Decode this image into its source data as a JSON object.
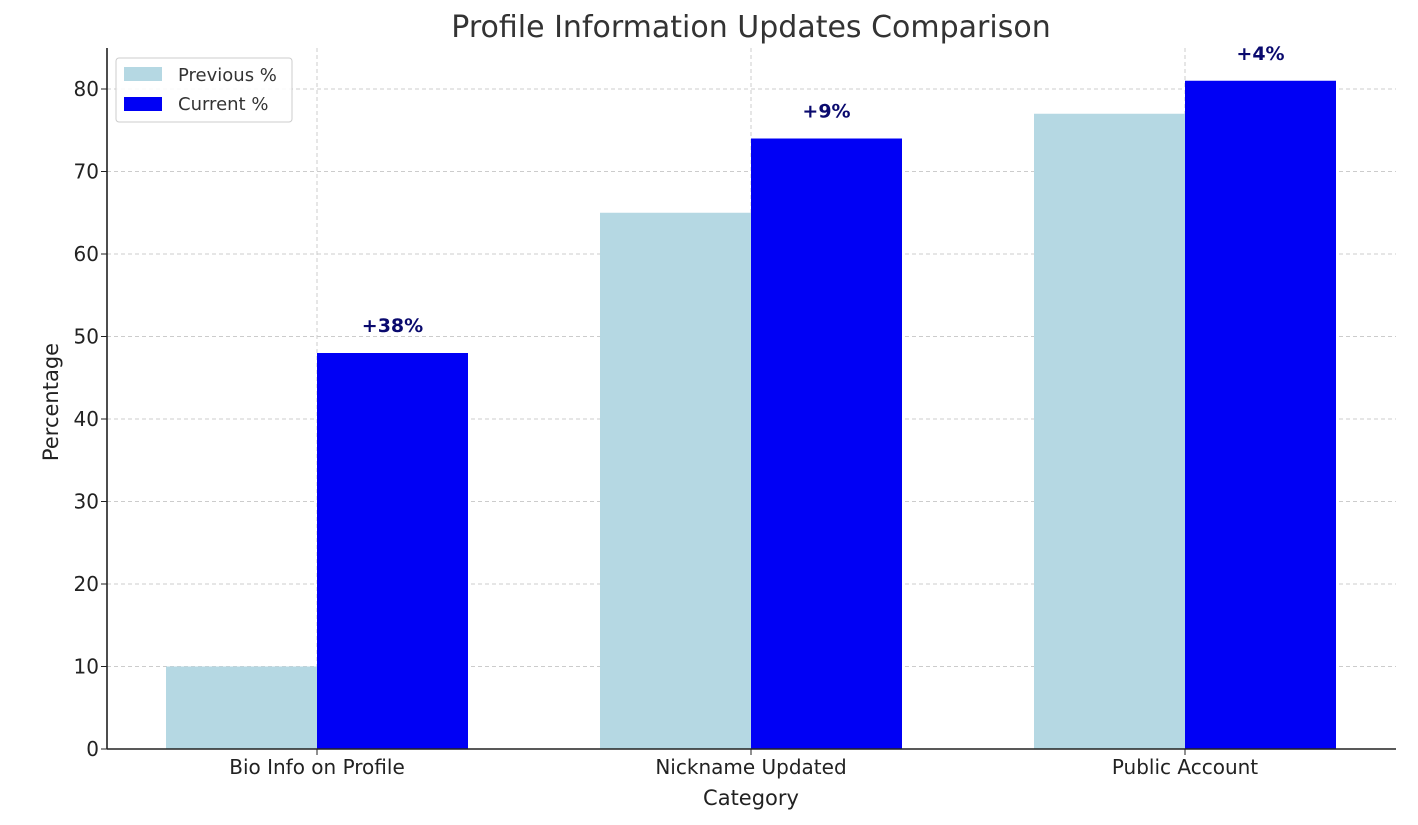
{
  "chart_data": {
    "type": "bar",
    "title": "Profile Information Updates Comparison",
    "xlabel": "Category",
    "ylabel": "Percentage",
    "categories": [
      "Bio Info on Profile",
      "Nickname Updated",
      "Public Account"
    ],
    "series": [
      {
        "name": "Previous %",
        "values": [
          10,
          65,
          77
        ],
        "color": "#b5d8e3"
      },
      {
        "name": "Current %",
        "values": [
          48,
          74,
          81
        ],
        "color": "#0000f5"
      }
    ],
    "annotations": [
      "+38%",
      "+9%",
      "+4%"
    ],
    "annotation_color": "#0a0a6e",
    "ylim": [
      0,
      85
    ],
    "yticks": [
      0,
      10,
      20,
      30,
      40,
      50,
      60,
      70,
      80
    ],
    "grid": true,
    "legend_position": "top-left"
  }
}
